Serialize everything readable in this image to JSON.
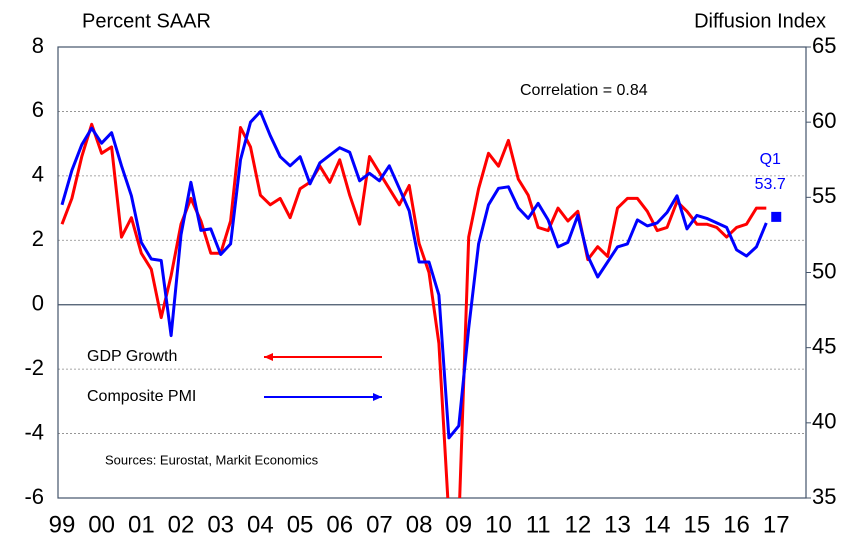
{
  "chart_data": {
    "type": "line",
    "y_label": "Percent SAAR",
    "y2_label": "Diffusion Index",
    "annotation": "Correlation = 0.84",
    "source": "Sources: Eurostat, Markit Economics",
    "x": [
      1999,
      1999.25,
      1999.5,
      1999.75,
      2000,
      2000.25,
      2000.5,
      2000.75,
      2001,
      2001.25,
      2001.5,
      2001.75,
      2002,
      2002.25,
      2002.5,
      2002.75,
      2003,
      2003.25,
      2003.5,
      2003.75,
      2004,
      2004.25,
      2004.5,
      2004.75,
      2005,
      2005.25,
      2005.5,
      2005.75,
      2006,
      2006.25,
      2006.5,
      2006.75,
      2007,
      2007.25,
      2007.5,
      2007.75,
      2008,
      2008.25,
      2008.5,
      2008.75,
      2009,
      2009.25,
      2009.5,
      2009.75,
      2010,
      2010.25,
      2010.5,
      2010.75,
      2011,
      2011.25,
      2011.5,
      2011.75,
      2012,
      2012.25,
      2012.5,
      2012.75,
      2013,
      2013.25,
      2013.5,
      2013.75,
      2014,
      2014.25,
      2014.5,
      2014.75,
      2015,
      2015.25,
      2015.5,
      2015.75,
      2016,
      2016.25,
      2016.5,
      2016.75
    ],
    "series": [
      {
        "name": "GDP Growth",
        "color": "#ff0000",
        "axis": "y",
        "values": [
          2.5,
          3.3,
          4.6,
          5.6,
          4.7,
          4.9,
          2.1,
          2.7,
          1.6,
          1.1,
          -0.4,
          0.9,
          2.5,
          3.3,
          2.6,
          1.6,
          1.6,
          2.6,
          5.5,
          4.9,
          3.4,
          3.1,
          3.3,
          2.7,
          3.6,
          3.8,
          4.3,
          3.8,
          4.5,
          3.4,
          2.5,
          4.6,
          4.1,
          3.6,
          3.1,
          3.7,
          1.9,
          1.0,
          -1.2,
          -6.6,
          -6.8,
          2.1,
          3.6,
          4.7,
          4.3,
          5.1,
          3.9,
          3.4,
          2.4,
          2.3,
          3.0,
          2.6,
          2.9,
          1.4,
          1.8,
          1.5,
          3.0,
          3.3,
          3.3,
          2.9,
          2.3,
          2.4,
          3.2,
          2.9,
          2.5,
          2.5,
          2.4,
          2.1,
          2.4,
          2.5,
          3.0,
          3.0
        ]
      },
      {
        "name": "Composite PMI",
        "color": "#0000ff",
        "axis": "y2",
        "values": [
          54.5,
          56.8,
          58.5,
          59.6,
          58.6,
          59.3,
          57.1,
          55.1,
          52.0,
          50.9,
          50.8,
          45.8,
          52.5,
          56.0,
          52.8,
          52.9,
          51.2,
          51.9,
          57.5,
          60.0,
          60.7,
          59.1,
          57.7,
          57.1,
          57.7,
          55.9,
          57.3,
          57.8,
          58.3,
          58.0,
          56.1,
          56.6,
          56.1,
          57.1,
          55.6,
          54.1,
          50.7,
          50.7,
          48.5,
          39.0,
          39.8,
          46.3,
          51.9,
          54.5,
          55.6,
          55.7,
          54.3,
          53.6,
          54.6,
          53.5,
          51.7,
          52.0,
          53.8,
          51.1,
          49.7,
          50.7,
          51.7,
          51.9,
          53.5,
          53.1,
          53.3,
          54.0,
          55.1,
          52.9,
          53.8,
          53.6,
          53.3,
          53.0,
          51.5,
          51.1,
          51.7,
          53.3
        ]
      }
    ],
    "marker": {
      "x": 2017,
      "value": 53.7,
      "label": "Q1",
      "value_label": "53.7",
      "axis": "y2",
      "color": "#0000ff"
    },
    "xlim": [
      1998.9,
      2017.75
    ],
    "xticks": [
      {
        "value": 1999,
        "label": "99"
      },
      {
        "value": 2000,
        "label": "00"
      },
      {
        "value": 2001,
        "label": "01"
      },
      {
        "value": 2002,
        "label": "02"
      },
      {
        "value": 2003,
        "label": "03"
      },
      {
        "value": 2004,
        "label": "04"
      },
      {
        "value": 2005,
        "label": "05"
      },
      {
        "value": 2006,
        "label": "06"
      },
      {
        "value": 2007,
        "label": "07"
      },
      {
        "value": 2008,
        "label": "08"
      },
      {
        "value": 2009,
        "label": "09"
      },
      {
        "value": 2010,
        "label": "10"
      },
      {
        "value": 2011,
        "label": "11"
      },
      {
        "value": 2012,
        "label": "12"
      },
      {
        "value": 2013,
        "label": "13"
      },
      {
        "value": 2014,
        "label": "14"
      },
      {
        "value": 2015,
        "label": "15"
      },
      {
        "value": 2016,
        "label": "16"
      },
      {
        "value": 2017,
        "label": "17"
      }
    ],
    "ylim": [
      -6,
      8
    ],
    "yticks": [
      -6,
      -4,
      -2,
      0,
      2,
      4,
      6,
      8
    ],
    "y2lim": [
      35,
      65
    ],
    "y2ticks": [
      35,
      40,
      45,
      50,
      55,
      60,
      65
    ],
    "grid": true
  }
}
